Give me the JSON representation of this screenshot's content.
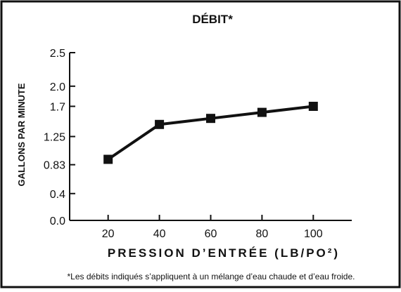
{
  "chart_data": {
    "type": "line",
    "title": "DÉBIT*",
    "xlabel": "PRESSION D’ENTRÉE (LB/PO²)",
    "ylabel": "GALLONS PAR MINUTE",
    "x": [
      20,
      40,
      60,
      80,
      100
    ],
    "x_tick_labels": [
      "20",
      "40",
      "60",
      "80",
      "100"
    ],
    "y_ticks": [
      0.0,
      0.4,
      0.83,
      1.25,
      1.7,
      2.0,
      2.5
    ],
    "y_tick_labels": [
      "0.0",
      "0.4",
      "0.83",
      "1.25",
      "1.7",
      "2.0",
      "2.5"
    ],
    "series": [
      {
        "values": [
          0.91,
          1.43,
          1.52,
          1.61,
          1.7
        ]
      }
    ],
    "xlim": [
      5,
      115
    ],
    "ylim": [
      0.0,
      2.5
    ],
    "grid": false,
    "legend": "none",
    "line_color": "#111111",
    "marker": "square"
  },
  "footnote": "*Les débits indiqués s’appliquent à un mélange d’eau chaude et d’eau froide."
}
